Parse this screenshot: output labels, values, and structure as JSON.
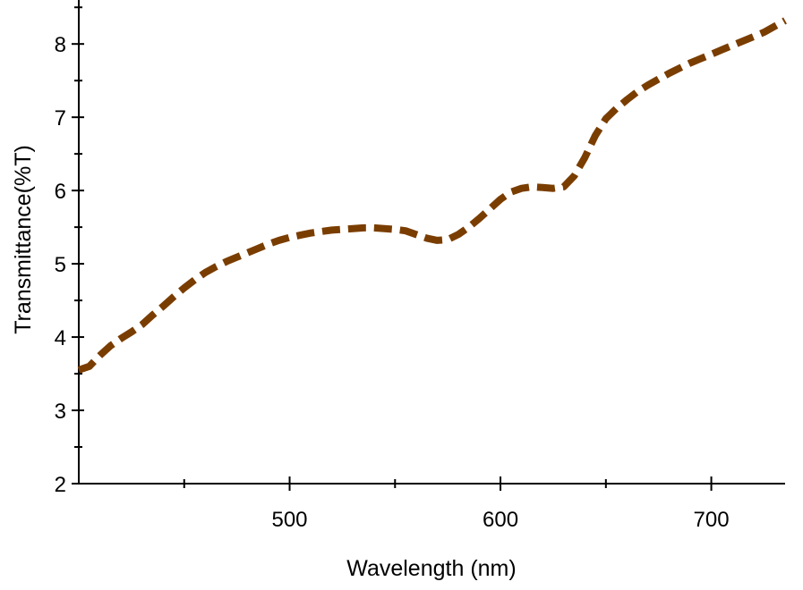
{
  "chart_data": {
    "type": "line",
    "title": "",
    "xlabel": "Wavelength (nm)",
    "ylabel": "Transmittance(%T)",
    "xlim": [
      400,
      735
    ],
    "ylim": [
      2,
      8.6
    ],
    "x_ticks": [
      500,
      600,
      700
    ],
    "x_minor_ticks": [
      450,
      550,
      650
    ],
    "y_ticks": [
      2,
      3,
      4,
      5,
      6,
      7,
      8
    ],
    "grid": false,
    "legend": "none",
    "series": [
      {
        "color": "#7a3d00",
        "line_style": "dashed",
        "x": [
          400,
          405,
          410,
          415,
          420,
          425,
          430,
          435,
          440,
          445,
          450,
          455,
          460,
          465,
          470,
          475,
          480,
          485,
          490,
          495,
          500,
          505,
          510,
          515,
          520,
          525,
          530,
          535,
          540,
          545,
          550,
          555,
          560,
          565,
          570,
          575,
          580,
          585,
          590,
          595,
          600,
          605,
          610,
          615,
          620,
          625,
          630,
          635,
          640,
          645,
          650,
          655,
          660,
          665,
          670,
          675,
          680,
          685,
          690,
          695,
          700,
          705,
          710,
          715,
          720,
          725,
          730,
          735
        ],
        "y": [
          3.55,
          3.6,
          3.75,
          3.88,
          3.98,
          4.07,
          4.17,
          4.3,
          4.42,
          4.55,
          4.67,
          4.78,
          4.88,
          4.96,
          5.03,
          5.09,
          5.15,
          5.21,
          5.27,
          5.32,
          5.36,
          5.39,
          5.42,
          5.44,
          5.46,
          5.47,
          5.48,
          5.49,
          5.49,
          5.48,
          5.47,
          5.45,
          5.4,
          5.35,
          5.32,
          5.33,
          5.4,
          5.5,
          5.62,
          5.75,
          5.88,
          5.98,
          6.03,
          6.05,
          6.04,
          6.03,
          6.05,
          6.2,
          6.45,
          6.75,
          6.98,
          7.12,
          7.24,
          7.35,
          7.44,
          7.52,
          7.6,
          7.67,
          7.74,
          7.8,
          7.86,
          7.92,
          7.98,
          8.04,
          8.1,
          8.16,
          8.24,
          8.32
        ]
      }
    ]
  }
}
